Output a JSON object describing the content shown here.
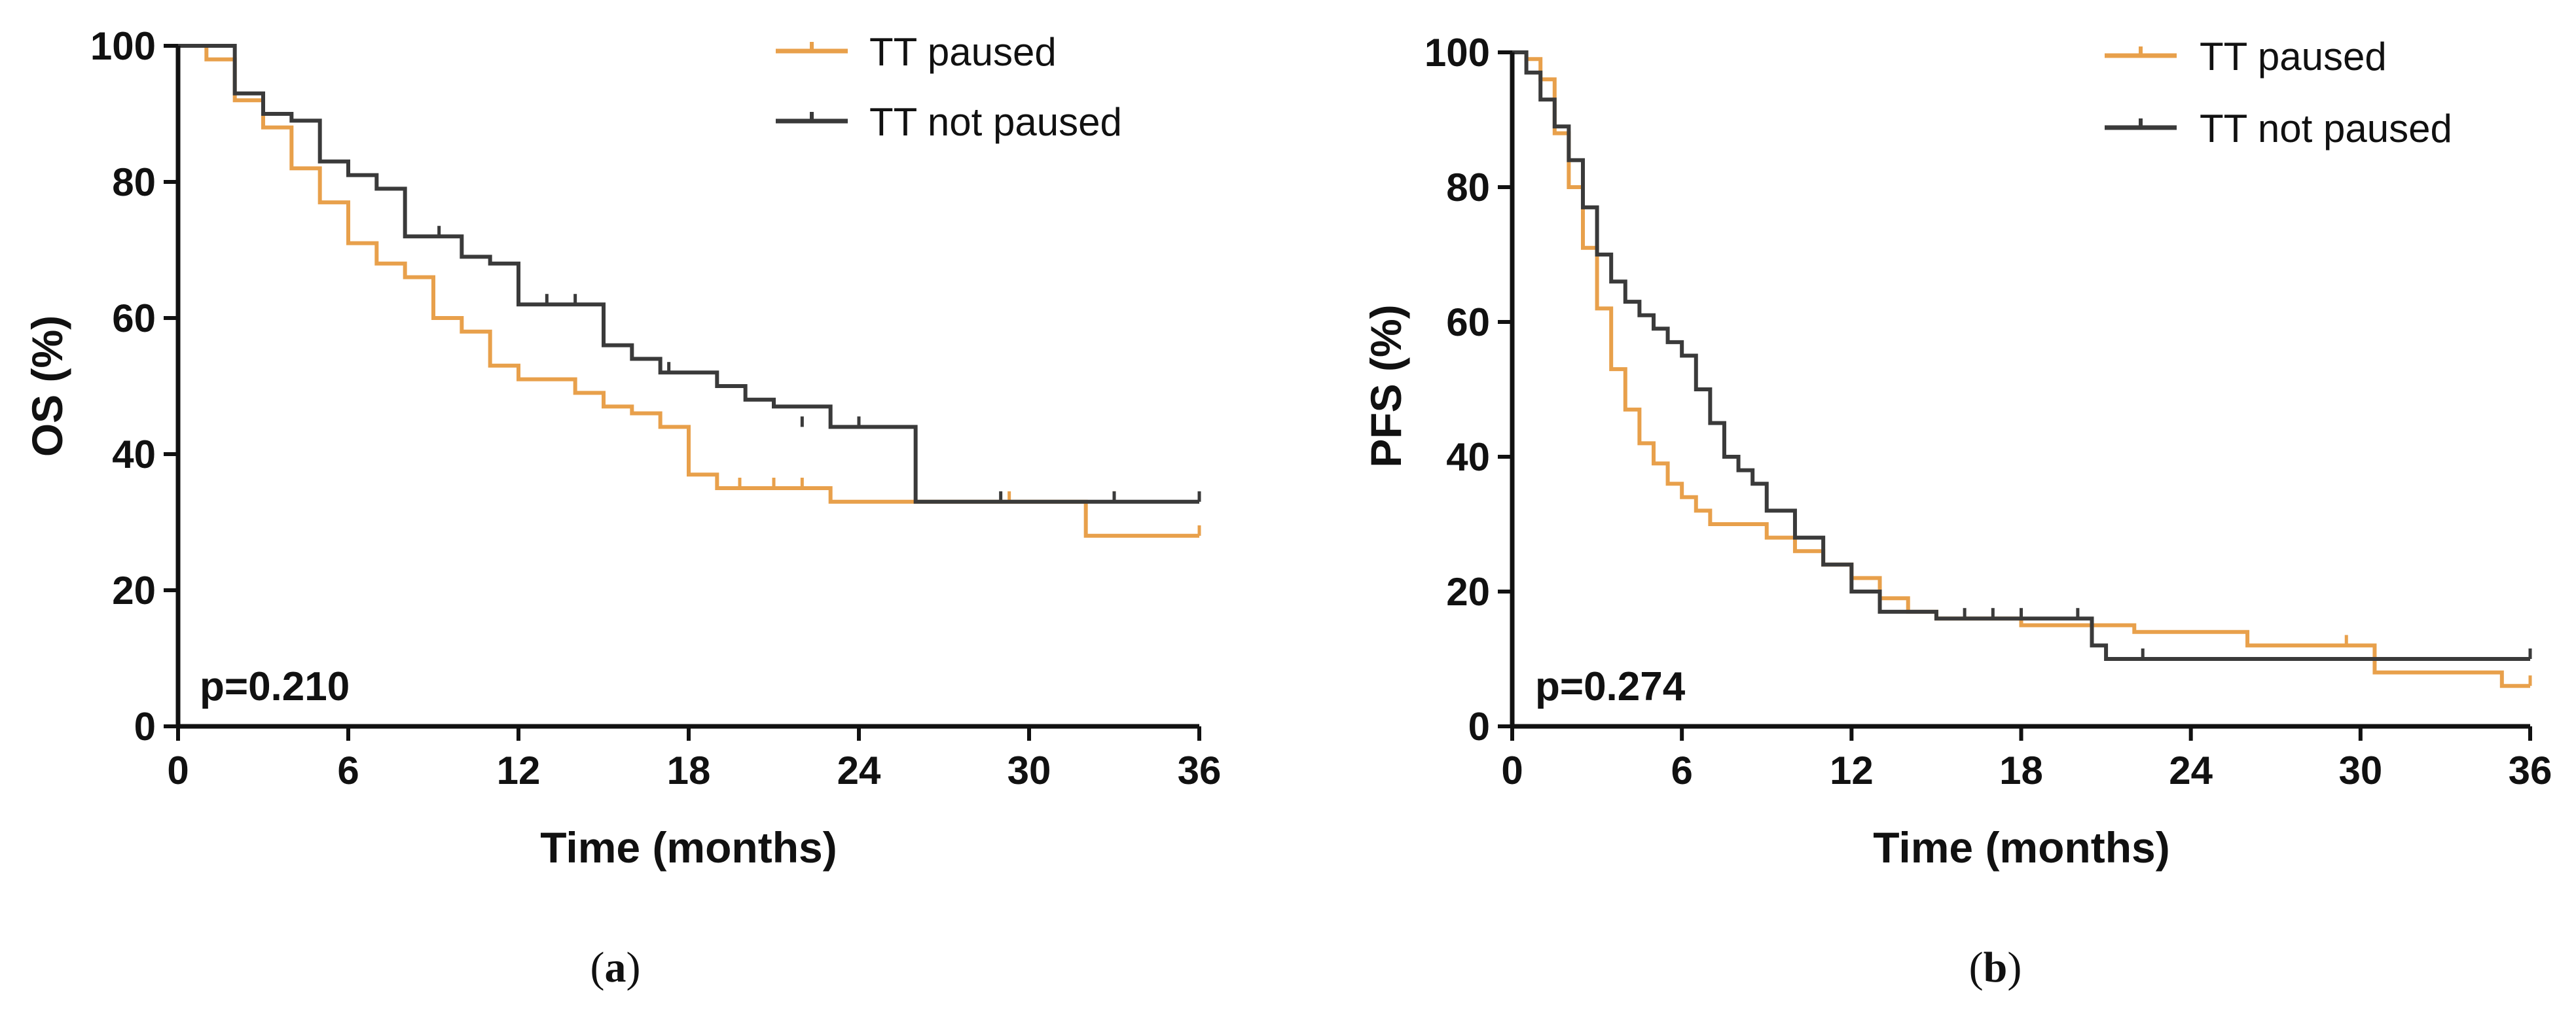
{
  "chart_data": [
    {
      "type": "line",
      "subtype": "kaplan-meier step",
      "caption": {
        "open": "(",
        "letter": "a",
        "close": ")"
      },
      "title": "",
      "xlabel": "Time (months)",
      "ylabel": "OS (%)",
      "xlim": [
        0,
        36
      ],
      "ylim": [
        0,
        100
      ],
      "xticks": [
        "0",
        "6",
        "12",
        "18",
        "24",
        "30",
        "36"
      ],
      "yticks": [
        "0",
        "20",
        "40",
        "60",
        "80",
        "100"
      ],
      "annotation": "p=0.210",
      "legend_position": "top-right",
      "series": [
        {
          "name": "TT paused",
          "color": "#E8A04B",
          "x": [
            0,
            1,
            2,
            3,
            4,
            5,
            6,
            7,
            8,
            9,
            10,
            11,
            12,
            13,
            14,
            15,
            16,
            17,
            18,
            19,
            20,
            21,
            22,
            23,
            24,
            25,
            26,
            27,
            28,
            29,
            30,
            31,
            32,
            33,
            34,
            35,
            36
          ],
          "y": [
            100,
            98,
            92,
            88,
            82,
            77,
            71,
            68,
            66,
            60,
            58,
            53,
            51,
            51,
            49,
            47,
            46,
            44,
            37,
            35,
            35,
            35,
            35,
            33,
            33,
            33,
            33,
            33,
            33,
            33,
            33,
            33,
            28,
            28,
            28,
            28,
            28
          ],
          "censor_x": [
            19.8,
            21,
            22,
            29.3,
            33,
            36
          ],
          "censor_y": [
            35,
            35,
            35,
            33,
            33,
            28
          ]
        },
        {
          "name": "TT not paused",
          "color": "#3A3A3A",
          "x": [
            0,
            1,
            2,
            3,
            4,
            5,
            6,
            7,
            8,
            9,
            10,
            11,
            12,
            13,
            14,
            15,
            16,
            17,
            18,
            19,
            20,
            21,
            22,
            23,
            24,
            25,
            26,
            27,
            28,
            29,
            30,
            31,
            32,
            33,
            34,
            35,
            36
          ],
          "y": [
            100,
            100,
            93,
            90,
            89,
            83,
            81,
            79,
            72,
            72,
            69,
            68,
            62,
            62,
            62,
            56,
            54,
            52,
            52,
            50,
            48,
            47,
            47,
            44,
            44,
            44,
            33,
            33,
            33,
            33,
            33,
            33,
            33,
            33,
            33,
            33,
            33
          ],
          "censor_x": [
            9.2,
            13,
            14,
            17.3,
            22,
            23,
            24,
            29,
            33,
            36
          ],
          "censor_y": [
            72,
            62,
            62,
            52,
            44,
            44,
            44,
            33,
            33,
            33
          ]
        }
      ]
    },
    {
      "type": "line",
      "subtype": "kaplan-meier step",
      "caption": {
        "open": "(",
        "letter": "b",
        "close": ")"
      },
      "title": "",
      "xlabel": "Time (months)",
      "ylabel": "PFS (%)",
      "xlim": [
        0,
        36
      ],
      "ylim": [
        0,
        100
      ],
      "xticks": [
        "0",
        "6",
        "12",
        "18",
        "24",
        "30",
        "36"
      ],
      "yticks": [
        "0",
        "20",
        "40",
        "60",
        "80",
        "100"
      ],
      "annotation": "p=0.274",
      "legend_position": "top-right",
      "series": [
        {
          "name": "TT paused",
          "color": "#E8A04B",
          "x": [
            0,
            0.5,
            1,
            1.5,
            2,
            2.5,
            3,
            3.5,
            4,
            4.5,
            5,
            5.5,
            6,
            6.5,
            7,
            8,
            9,
            10,
            11,
            12,
            13,
            14,
            15,
            16,
            17,
            18,
            19,
            20,
            21,
            22,
            23,
            24,
            25,
            26,
            27,
            28,
            29,
            30,
            30.5,
            31,
            32,
            33,
            34,
            35,
            36
          ],
          "y": [
            100,
            99,
            96,
            88,
            80,
            71,
            62,
            53,
            47,
            42,
            39,
            36,
            34,
            32,
            30,
            30,
            28,
            26,
            24,
            22,
            19,
            17,
            16,
            16,
            16,
            15,
            15,
            15,
            15,
            14,
            14,
            14,
            14,
            12,
            12,
            12,
            12,
            12,
            8,
            8,
            8,
            8,
            8,
            6,
            6
          ],
          "censor_x": [
            29.5,
            36
          ],
          "censor_y": [
            12,
            6
          ]
        },
        {
          "name": "TT not paused",
          "color": "#3A3A3A",
          "x": [
            0,
            0.5,
            1,
            1.5,
            2,
            2.5,
            3,
            3.5,
            4,
            4.5,
            5,
            5.5,
            6,
            6.5,
            7,
            7.5,
            8,
            8.5,
            9,
            10,
            11,
            12,
            13,
            14,
            15,
            16,
            17,
            18,
            19,
            20,
            20.5,
            21,
            22,
            24,
            26,
            28,
            30,
            32,
            34,
            36
          ],
          "y": [
            100,
            97,
            93,
            89,
            84,
            77,
            70,
            66,
            63,
            61,
            59,
            57,
            55,
            50,
            45,
            40,
            38,
            36,
            32,
            28,
            24,
            20,
            17,
            17,
            16,
            16,
            16,
            16,
            16,
            16,
            12,
            10,
            10,
            10,
            10,
            10,
            10,
            10,
            10,
            10
          ],
          "censor_x": [
            16,
            17,
            18,
            20,
            22.3,
            36
          ],
          "censor_y": [
            16,
            16,
            16,
            16,
            10,
            10
          ]
        }
      ]
    }
  ]
}
